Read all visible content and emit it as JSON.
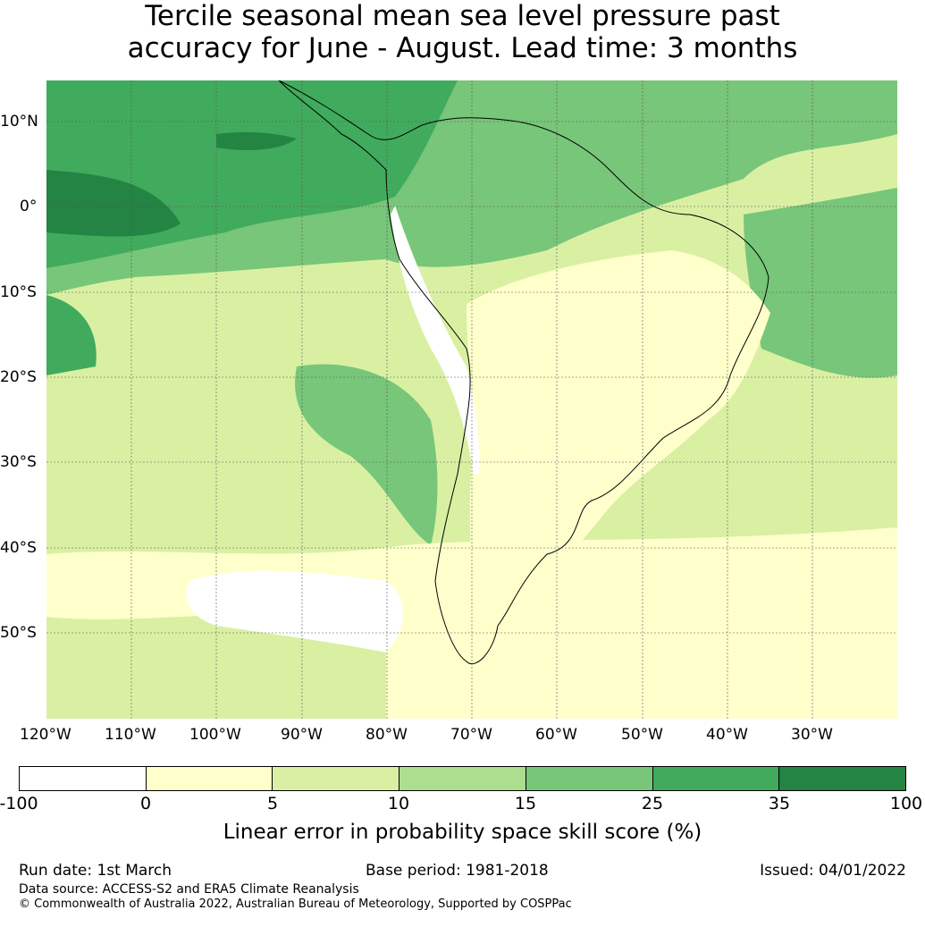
{
  "title_line1": "Tercile seasonal mean sea level pressure past",
  "title_line2": "accuracy for June - August. Lead time: 3 months",
  "lat_labels": [
    "10°N",
    "0°",
    "10°S",
    "20°S",
    "30°S",
    "40°S",
    "50°S"
  ],
  "lon_labels": [
    "120°W",
    "110°W",
    "100°W",
    "90°W",
    "80°W",
    "70°W",
    "60°W",
    "50°W",
    "40°W",
    "30°W"
  ],
  "colorbar": {
    "ticks": [
      "-100",
      "0",
      "5",
      "10",
      "15",
      "25",
      "35",
      "100"
    ],
    "colors": [
      "#ffffff",
      "#ffffcc",
      "#d9f0a3",
      "#addd8e",
      "#78c679",
      "#41ab5d",
      "#238443"
    ],
    "label": "Linear error in probability space skill score (%)"
  },
  "footer": {
    "run_date": "Run date: 1st March",
    "base_period": "Base period: 1981-2018",
    "issued": "Issued: 04/01/2022",
    "data_source": "Data source: ACCESS-S2 and ERA5 Climate Reanalysis",
    "copyright": "© Commonwealth of Australia 2022, Australian Bureau of Meteorology, Supported by COSPPac"
  }
}
